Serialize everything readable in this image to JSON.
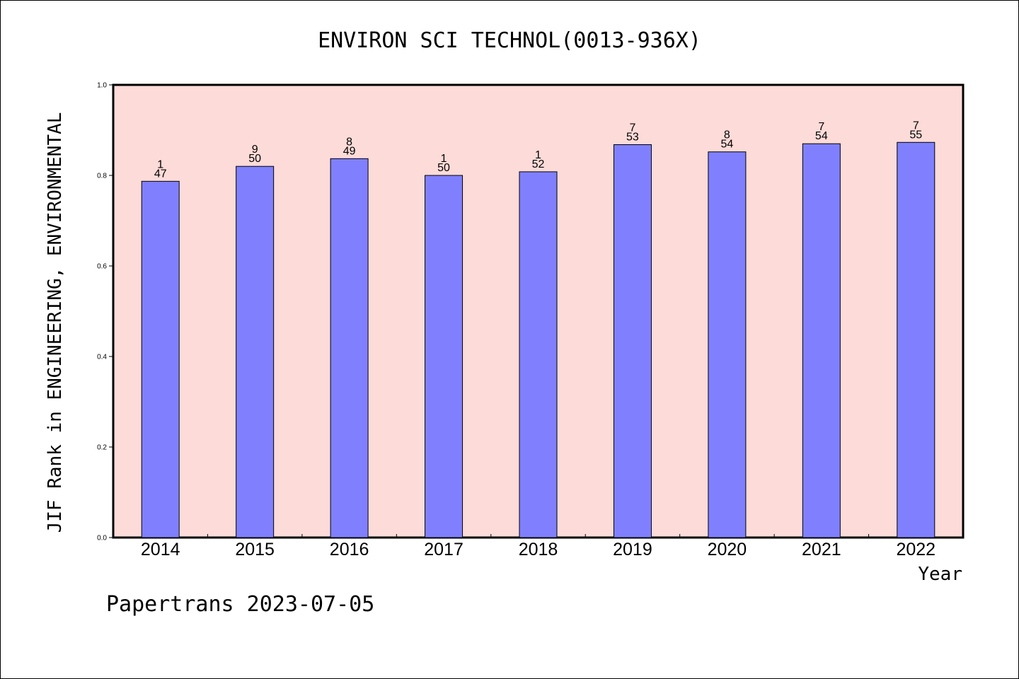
{
  "chart_data": {
    "type": "bar",
    "title": "ENVIRON SCI TECHNOL(0013-936X)",
    "xlabel": "Year",
    "ylabel": "JIF Rank in ENGINEERING, ENVIRONMENTAL",
    "ylim": [
      0,
      1.0
    ],
    "yticks": [
      "0.0",
      "0.2",
      "0.4",
      "0.6",
      "0.8",
      "1.0"
    ],
    "categories": [
      "2014",
      "2015",
      "2016",
      "2017",
      "2018",
      "2019",
      "2020",
      "2021",
      "2022"
    ],
    "values": [
      0.787,
      0.82,
      0.837,
      0.8,
      0.808,
      0.868,
      0.852,
      0.87,
      0.873
    ],
    "rank": [
      "1",
      "9",
      "8",
      "1",
      "1",
      "7",
      "8",
      "7",
      "7"
    ],
    "total": [
      "47",
      "50",
      "49",
      "50",
      "52",
      "53",
      "54",
      "54",
      "55"
    ],
    "colors": {
      "plot_bg": "#fddbd8",
      "bar_fill": "#8080ff",
      "bar_stroke": "#000000"
    },
    "grid": false,
    "legend": "none"
  },
  "footer": "Papertrans 2023-07-05"
}
